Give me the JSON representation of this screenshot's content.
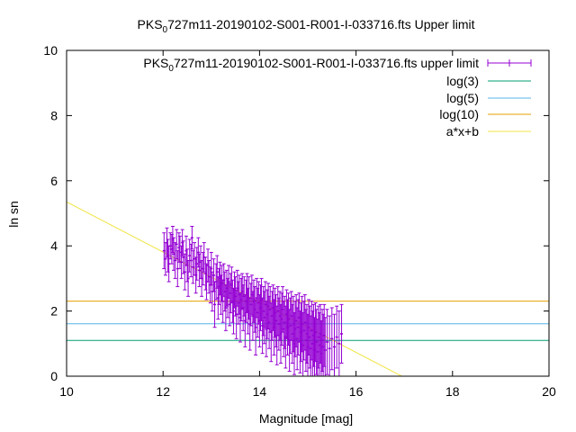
{
  "chart_data": {
    "type": "scatter",
    "title_parts": [
      "PKS",
      "0",
      "727m11-20190102-S001-R001-I-033716.fts Upper limit"
    ],
    "xlabel": "Magnitude [mag]",
    "ylabel": "ln sn",
    "xlim": [
      10,
      20
    ],
    "ylim": [
      0,
      10
    ],
    "xticks": [
      "10",
      "12",
      "14",
      "16",
      "18",
      "20"
    ],
    "yticks": [
      "0",
      "2",
      "4",
      "6",
      "8",
      "10"
    ],
    "grid": false,
    "legend_position": "top-right",
    "legend": [
      {
        "label_parts": [
          "PKS",
          "0",
          "727m11-20190102-S001-R001-I-033716.fts upper limit"
        ],
        "color": "#9400d3",
        "kind": "errorbars"
      },
      {
        "label": "log(3)",
        "color": "#009e73",
        "kind": "line"
      },
      {
        "label": "log(5)",
        "color": "#56b4e9",
        "kind": "line"
      },
      {
        "label": "log(10)",
        "color": "#e69f00",
        "kind": "line"
      },
      {
        "label": "a*x+b",
        "color": "#f0e442",
        "kind": "line"
      }
    ],
    "hlines": [
      {
        "name": "log(3)",
        "y": 1.0986,
        "color": "#009e73"
      },
      {
        "name": "log(5)",
        "y": 1.6094,
        "color": "#56b4e9"
      },
      {
        "name": "log(10)",
        "y": 2.3026,
        "color": "#e69f00"
      }
    ],
    "fit_line": {
      "name": "a*x+b",
      "slope": -0.77,
      "intercept": 13.05,
      "color": "#f0e442"
    },
    "series_color": "#9400d3",
    "points": [
      [
        12.02,
        3.85,
        0.55
      ],
      [
        12.05,
        3.6,
        0.5
      ],
      [
        12.08,
        4.1,
        0.45
      ],
      [
        12.1,
        3.7,
        0.5
      ],
      [
        12.12,
        3.45,
        0.55
      ],
      [
        12.15,
        4.0,
        0.4
      ],
      [
        12.18,
        3.9,
        0.45
      ],
      [
        12.2,
        4.2,
        0.4
      ],
      [
        12.22,
        3.75,
        0.5
      ],
      [
        12.25,
        3.55,
        0.55
      ],
      [
        12.28,
        4.05,
        0.45
      ],
      [
        12.3,
        3.3,
        0.55
      ],
      [
        12.33,
        3.95,
        0.45
      ],
      [
        12.35,
        3.8,
        0.5
      ],
      [
        12.38,
        3.5,
        0.5
      ],
      [
        12.4,
        4.1,
        0.4
      ],
      [
        12.42,
        3.65,
        0.5
      ],
      [
        12.45,
        3.2,
        0.55
      ],
      [
        12.48,
        3.85,
        0.45
      ],
      [
        12.5,
        3.4,
        0.5
      ],
      [
        12.52,
        3.0,
        0.55
      ],
      [
        12.55,
        3.7,
        0.5
      ],
      [
        12.58,
        3.55,
        0.5
      ],
      [
        12.6,
        4.25,
        0.35
      ],
      [
        12.62,
        3.35,
        0.5
      ],
      [
        12.65,
        3.6,
        0.5
      ],
      [
        12.68,
        3.1,
        0.55
      ],
      [
        12.7,
        3.45,
        0.5
      ],
      [
        12.73,
        3.8,
        0.45
      ],
      [
        12.75,
        3.25,
        0.5
      ],
      [
        12.78,
        3.5,
        0.5
      ],
      [
        12.8,
        3.0,
        0.55
      ],
      [
        12.83,
        3.3,
        0.5
      ],
      [
        12.85,
        3.65,
        0.45
      ],
      [
        12.88,
        3.15,
        0.5
      ],
      [
        12.9,
        2.9,
        0.55
      ],
      [
        12.93,
        3.4,
        0.5
      ],
      [
        12.95,
        3.05,
        0.5
      ],
      [
        12.98,
        2.8,
        0.55
      ],
      [
        13.0,
        3.3,
        0.5
      ],
      [
        13.02,
        2.6,
        0.6
      ],
      [
        13.05,
        3.1,
        0.5
      ],
      [
        13.07,
        2.2,
        0.7
      ],
      [
        13.1,
        2.9,
        0.55
      ],
      [
        13.12,
        3.2,
        0.5
      ],
      [
        13.14,
        2.4,
        0.65
      ],
      [
        13.16,
        2.75,
        0.55
      ],
      [
        13.18,
        3.0,
        0.5
      ],
      [
        13.2,
        2.5,
        0.6
      ],
      [
        13.22,
        2.85,
        0.55
      ],
      [
        13.24,
        2.3,
        0.65
      ],
      [
        13.26,
        2.95,
        0.5
      ],
      [
        13.28,
        2.6,
        0.6
      ],
      [
        13.3,
        2.1,
        0.7
      ],
      [
        13.32,
        2.7,
        0.55
      ],
      [
        13.34,
        2.4,
        0.6
      ],
      [
        13.36,
        2.9,
        0.5
      ],
      [
        13.38,
        2.2,
        0.65
      ],
      [
        13.4,
        2.55,
        0.6
      ],
      [
        13.42,
        2.8,
        0.55
      ],
      [
        13.44,
        2.3,
        0.65
      ],
      [
        13.46,
        2.0,
        0.7
      ],
      [
        13.48,
        2.65,
        0.55
      ],
      [
        13.5,
        2.45,
        0.6
      ],
      [
        13.52,
        1.9,
        0.75
      ],
      [
        13.54,
        2.7,
        0.55
      ],
      [
        13.56,
        2.25,
        0.65
      ],
      [
        13.58,
        2.5,
        0.6
      ],
      [
        13.6,
        1.8,
        0.75
      ],
      [
        13.62,
        2.35,
        0.65
      ],
      [
        13.64,
        2.6,
        0.55
      ],
      [
        13.66,
        2.1,
        0.7
      ],
      [
        13.68,
        2.45,
        0.6
      ],
      [
        13.7,
        1.7,
        0.8
      ],
      [
        13.72,
        2.3,
        0.65
      ],
      [
        13.74,
        2.55,
        0.6
      ],
      [
        13.76,
        2.0,
        0.7
      ],
      [
        13.78,
        2.4,
        0.65
      ],
      [
        13.8,
        1.6,
        0.8
      ],
      [
        13.82,
        2.2,
        0.65
      ],
      [
        13.84,
        2.5,
        0.6
      ],
      [
        13.86,
        1.85,
        0.75
      ],
      [
        13.88,
        2.3,
        0.65
      ],
      [
        13.9,
        2.05,
        0.7
      ],
      [
        13.92,
        1.5,
        0.85
      ],
      [
        13.94,
        2.4,
        0.6
      ],
      [
        13.96,
        1.95,
        0.75
      ],
      [
        13.98,
        2.25,
        0.65
      ],
      [
        14.0,
        1.7,
        0.8
      ],
      [
        14.02,
        2.1,
        0.7
      ],
      [
        14.04,
        2.35,
        0.65
      ],
      [
        14.06,
        1.55,
        0.85
      ],
      [
        14.08,
        2.0,
        0.75
      ],
      [
        14.1,
        1.8,
        0.8
      ],
      [
        14.12,
        2.2,
        0.7
      ],
      [
        14.14,
        1.45,
        0.85
      ],
      [
        14.16,
        1.9,
        0.75
      ],
      [
        14.18,
        2.15,
        0.7
      ],
      [
        14.2,
        1.65,
        0.8
      ],
      [
        14.22,
        2.05,
        0.7
      ],
      [
        14.24,
        1.35,
        0.9
      ],
      [
        14.26,
        1.85,
        0.75
      ],
      [
        14.28,
        2.1,
        0.7
      ],
      [
        14.3,
        1.5,
        0.85
      ],
      [
        14.32,
        1.95,
        0.75
      ],
      [
        14.34,
        1.7,
        0.8
      ],
      [
        14.36,
        1.25,
        0.9
      ],
      [
        14.38,
        2.0,
        0.75
      ],
      [
        14.4,
        1.6,
        0.8
      ],
      [
        14.42,
        1.85,
        0.75
      ],
      [
        14.44,
        1.3,
        0.9
      ],
      [
        14.46,
        1.75,
        0.8
      ],
      [
        14.48,
        2.05,
        0.7
      ],
      [
        14.5,
        1.45,
        0.85
      ],
      [
        14.52,
        1.65,
        0.8
      ],
      [
        14.54,
        1.2,
        0.95
      ],
      [
        14.56,
        1.9,
        0.75
      ],
      [
        14.58,
        1.5,
        0.85
      ],
      [
        14.6,
        1.75,
        0.8
      ],
      [
        14.62,
        1.1,
        0.95
      ],
      [
        14.64,
        1.55,
        0.85
      ],
      [
        14.66,
        1.85,
        0.75
      ],
      [
        14.68,
        1.3,
        0.9
      ],
      [
        14.7,
        1.6,
        0.85
      ],
      [
        14.72,
        1.0,
        0.95
      ],
      [
        14.74,
        1.45,
        0.85
      ],
      [
        14.76,
        1.7,
        0.8
      ],
      [
        14.78,
        1.15,
        0.95
      ],
      [
        14.8,
        1.5,
        0.85
      ],
      [
        14.82,
        1.8,
        0.75
      ],
      [
        14.84,
        1.05,
        0.95
      ],
      [
        14.86,
        1.35,
        0.9
      ],
      [
        14.88,
        1.6,
        0.85
      ],
      [
        14.9,
        0.95,
        1.0
      ],
      [
        14.92,
        1.4,
        0.9
      ],
      [
        14.94,
        1.65,
        0.85
      ],
      [
        14.96,
        1.1,
        0.95
      ],
      [
        14.98,
        1.3,
        0.9
      ],
      [
        15.0,
        0.9,
        1.0
      ],
      [
        15.02,
        1.5,
        0.85
      ],
      [
        15.04,
        1.2,
        0.95
      ],
      [
        15.06,
        0.85,
        1.0
      ],
      [
        15.08,
        1.4,
        0.9
      ],
      [
        15.1,
        1.0,
        1.0
      ],
      [
        15.12,
        1.25,
        0.95
      ],
      [
        15.14,
        0.8,
        1.0
      ],
      [
        15.16,
        1.35,
        0.9
      ],
      [
        15.18,
        1.05,
        1.0
      ],
      [
        15.2,
        0.75,
        1.0
      ],
      [
        15.22,
        1.2,
        0.95
      ],
      [
        15.24,
        0.95,
        1.0
      ],
      [
        15.26,
        1.3,
        0.9
      ],
      [
        15.28,
        0.7,
        1.0
      ],
      [
        15.3,
        1.1,
        0.95
      ],
      [
        15.32,
        0.9,
        1.0
      ],
      [
        15.34,
        1.25,
        0.95
      ],
      [
        15.36,
        0.8,
        1.0
      ],
      [
        15.4,
        1.05,
        1.0
      ],
      [
        15.45,
        0.85,
        1.0
      ],
      [
        15.5,
        1.15,
        0.95
      ],
      [
        15.55,
        0.9,
        1.0
      ],
      [
        15.6,
        1.2,
        0.95
      ],
      [
        15.65,
        1.0,
        1.0
      ],
      [
        15.7,
        1.3,
        0.9
      ]
    ]
  }
}
